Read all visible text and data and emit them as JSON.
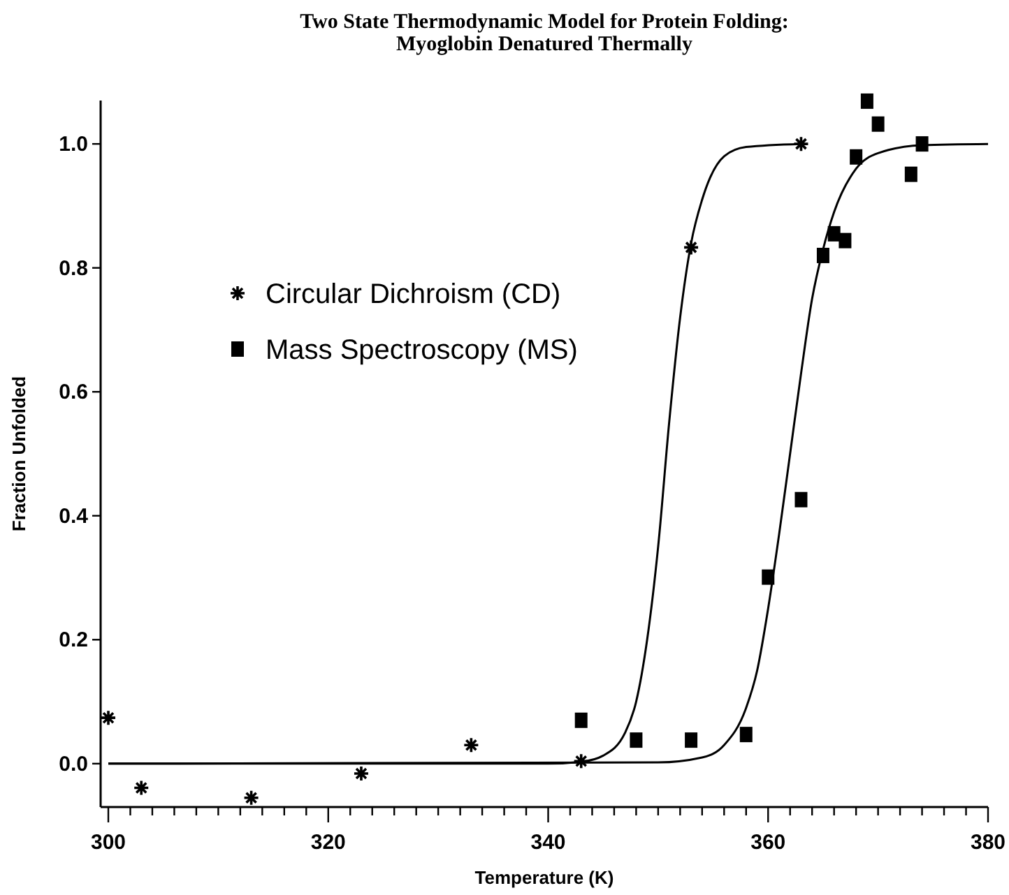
{
  "chart_data": {
    "type": "scatter",
    "title": "Two State Thermodynamic Model for Protein Folding:\nMyoglobin Denatured Thermally",
    "xlabel": "Temperature (K)",
    "ylabel": "Fraction Unfolded",
    "xlim": [
      299.3,
      380
    ],
    "ylim": [
      -0.07,
      1.07
    ],
    "xticks": [
      300,
      {
        "value": 302,
        "label": null
      },
      {
        "value": 304,
        "label": null
      },
      {
        "value": 306,
        "label": null
      },
      {
        "value": 308,
        "label": null
      },
      {
        "value": 310,
        "label": null
      },
      {
        "value": 312,
        "label": null
      },
      {
        "value": 314,
        "label": null
      },
      {
        "value": 316,
        "label": null
      },
      {
        "value": 318,
        "label": null
      },
      320,
      {
        "value": 322,
        "label": null
      },
      {
        "value": 324,
        "label": null
      },
      {
        "value": 326,
        "label": null
      },
      {
        "value": 328,
        "label": null
      },
      {
        "value": 330,
        "label": null
      },
      {
        "value": 332,
        "label": null
      },
      {
        "value": 334,
        "label": null
      },
      {
        "value": 336,
        "label": null
      },
      {
        "value": 338,
        "label": null
      },
      340,
      {
        "value": 342,
        "label": null
      },
      {
        "value": 344,
        "label": null
      },
      {
        "value": 346,
        "label": null
      },
      {
        "value": 348,
        "label": null
      },
      {
        "value": 350,
        "label": null
      },
      {
        "value": 352,
        "label": null
      },
      {
        "value": 354,
        "label": null
      },
      {
        "value": 356,
        "label": null
      },
      {
        "value": 358,
        "label": null
      },
      360,
      {
        "value": 362,
        "label": null
      },
      {
        "value": 364,
        "label": null
      },
      {
        "value": 366,
        "label": null
      },
      {
        "value": 368,
        "label": null
      },
      {
        "value": 370,
        "label": null
      },
      {
        "value": 372,
        "label": null
      },
      {
        "value": 374,
        "label": null
      },
      {
        "value": 376,
        "label": null
      },
      {
        "value": 378,
        "label": null
      },
      380
    ],
    "yticks": [
      {
        "value": 0,
        "label": "0.0"
      },
      0.2,
      0.4,
      0.6,
      0.8,
      {
        "value": 1,
        "label": "1.0"
      }
    ],
    "grid": false,
    "legend": "top left",
    "series": [
      {
        "name": "Circular Dichroism (CD)",
        "marker": "cross",
        "color": "#000000",
        "x": [
          300,
          303,
          313,
          323,
          333,
          343,
          353,
          363
        ],
        "values": [
          0.074,
          -0.039,
          -0.055,
          -0.016,
          0.03,
          0.004,
          0.833,
          1.0
        ]
      },
      {
        "name": "Mass Spectroscopy (MS)",
        "marker": "square",
        "color": "#000000",
        "x": [
          343,
          348,
          353,
          358,
          360,
          363,
          365,
          366,
          367,
          368,
          369,
          370,
          373,
          374
        ],
        "values": [
          0.07,
          0.038,
          0.038,
          0.047,
          0.301,
          0.426,
          0.82,
          0.855,
          0.844,
          0.979,
          1.069,
          1.032,
          0.951,
          1.0
        ]
      },
      {
        "type": "line",
        "marker": "none",
        "line_style": "solid",
        "color": "#000000",
        "x": [
          300,
          340,
          343,
          345,
          347,
          348,
          349,
          350,
          351,
          352,
          353,
          354,
          356,
          358,
          363
        ],
        "values": [
          0,
          0,
          0.003,
          0.013,
          0.05,
          0.1,
          0.2,
          0.35,
          0.55,
          0.72,
          0.84,
          0.91,
          0.98,
          0.995,
          1.0
        ]
      },
      {
        "type": "line",
        "marker": "none",
        "line_style": "solid",
        "color": "#000000",
        "x": [
          300,
          350,
          354,
          356,
          358,
          359,
          360,
          361,
          362,
          363,
          364,
          365,
          366,
          368,
          370,
          374,
          380
        ],
        "values": [
          0,
          0.002,
          0.01,
          0.03,
          0.09,
          0.15,
          0.25,
          0.37,
          0.5,
          0.63,
          0.75,
          0.83,
          0.89,
          0.96,
          0.985,
          0.998,
          1.0
        ]
      }
    ]
  }
}
